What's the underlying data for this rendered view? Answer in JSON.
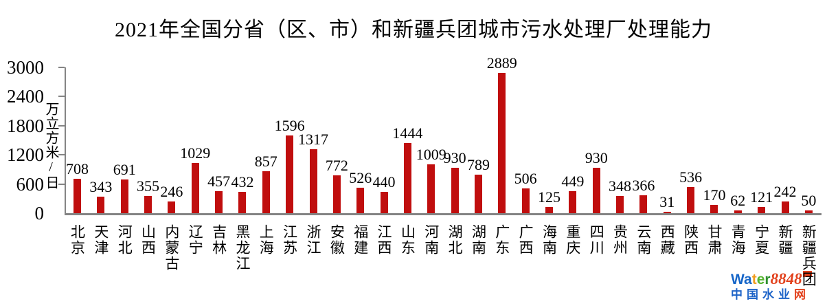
{
  "chart_data": {
    "type": "bar",
    "title": "2021年全国分省（区、市）和新疆兵团城市污水处理厂处理能力",
    "categories": [
      "北京",
      "天津",
      "河北",
      "山西",
      "内蒙古",
      "辽宁",
      "吉林",
      "黑龙江",
      "上海",
      "江苏",
      "浙江",
      "安徽",
      "福建",
      "江西",
      "山东",
      "河南",
      "湖北",
      "湖南",
      "广东",
      "广西",
      "海南",
      "重庆",
      "四川",
      "贵州",
      "云南",
      "西藏",
      "陕西",
      "甘肃",
      "青海",
      "宁夏",
      "新疆",
      "新疆兵团"
    ],
    "values": [
      708,
      343,
      691,
      355,
      246,
      1029,
      457,
      432,
      857,
      1596,
      1317,
      772,
      526,
      440,
      1444,
      1009,
      930,
      789,
      2889,
      506,
      125,
      449,
      930,
      348,
      366,
      31,
      536,
      170,
      62,
      121,
      242,
      50
    ],
    "xlabel": "",
    "ylabel": "万立方米/日",
    "yticks": [
      0,
      600,
      1200,
      1800,
      2400,
      3000
    ],
    "ylim": [
      0,
      3000
    ],
    "grid": false,
    "legend_position": "none",
    "value_labels_shown": true,
    "bar_color": "#c00e0e",
    "axis_color": "#848484",
    "text_color": "#000000"
  },
  "watermark": {
    "brand_letters": [
      {
        "text": "W",
        "color": "#1565c8"
      },
      {
        "text": "a",
        "color": "#1565c8"
      },
      {
        "text": "t",
        "color": "#f09c1e"
      },
      {
        "text": "e",
        "color": "#55b52e"
      },
      {
        "text": "r",
        "color": "#2e8f2e"
      },
      {
        "text": "8848",
        "color": "#e2401b"
      }
    ],
    "badge_color": "#e2401b",
    "subtitle_chars": [
      {
        "text": "中",
        "color": "#1e64c8"
      },
      {
        "text": "国",
        "color": "#1e64c8"
      },
      {
        "text": "水",
        "color": "#1e64c8"
      },
      {
        "text": "业",
        "color": "#1e64c8"
      },
      {
        "text": "网",
        "color": "#e2401b"
      }
    ]
  }
}
